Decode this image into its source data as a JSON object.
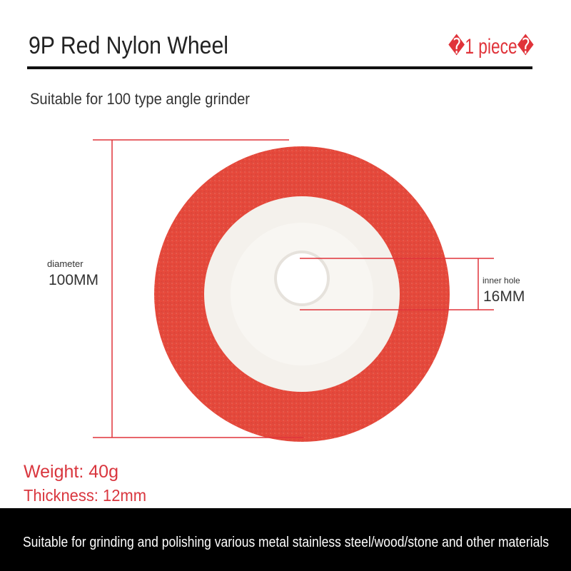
{
  "header": {
    "title": "9P Red Nylon Wheel",
    "quantity": "�1 piece�",
    "subtitle": "Suitable for 100 type angle grinder"
  },
  "dimensions": {
    "diameter_label": "diameter",
    "diameter_value": "100MM",
    "hole_label": "inner hole",
    "hole_value": "16MM"
  },
  "specs": {
    "weight": "Weight: 40g",
    "thickness": "Thickness: 12mm"
  },
  "footer": {
    "text": "Suitable for grinding and polishing various metal stainless steel/wood/stone and other materials"
  }
}
